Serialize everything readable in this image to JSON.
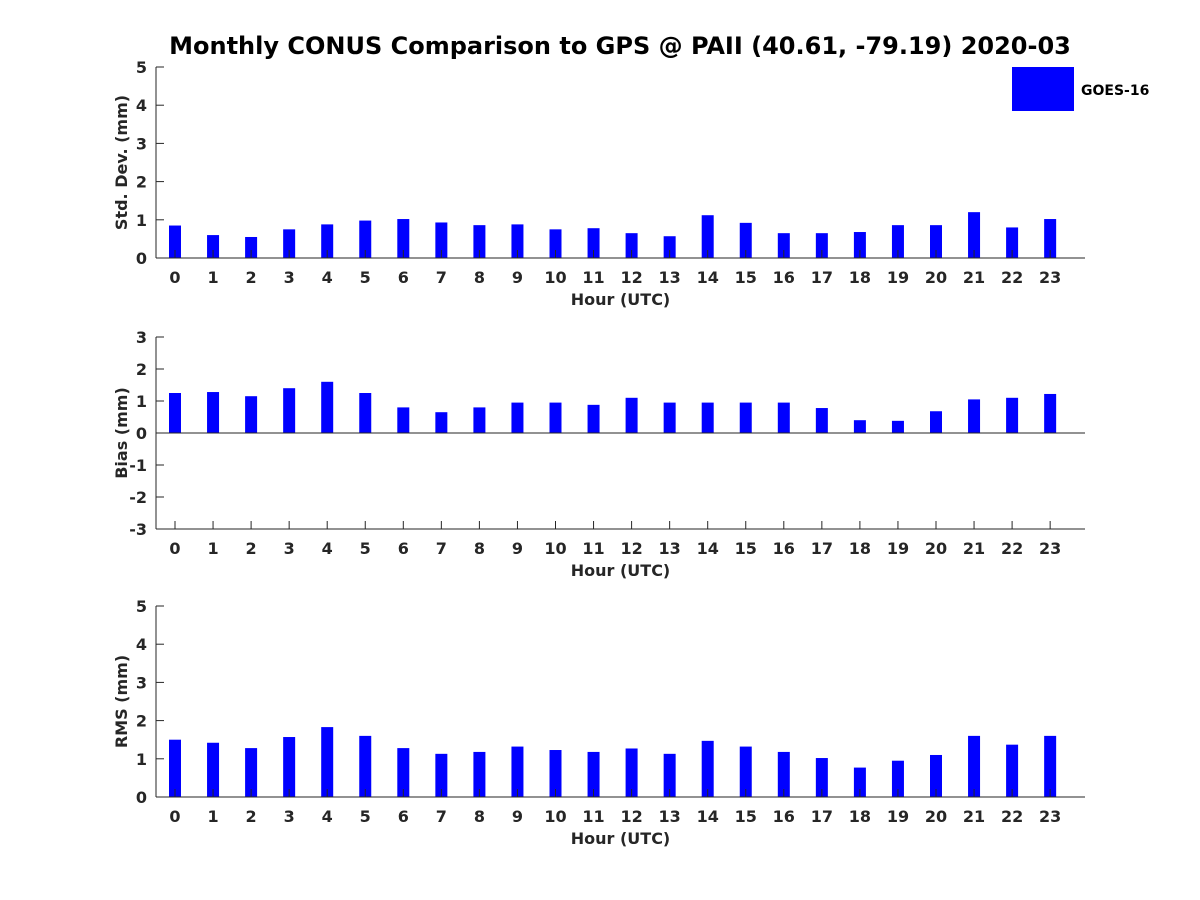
{
  "title": "Monthly CONUS Comparison to GPS @ PAII (40.61, -79.19) 2020-03",
  "legend": {
    "label": "GOES-16",
    "placement": "top-right"
  },
  "colors": {
    "bar": "#0000ff",
    "axis": "#262626"
  },
  "chart_data": [
    {
      "type": "bar",
      "series": [
        {
          "name": "GOES-16",
          "values": [
            0.85,
            0.6,
            0.55,
            0.75,
            0.88,
            0.98,
            1.02,
            0.93,
            0.86,
            0.88,
            0.75,
            0.78,
            0.65,
            0.57,
            1.12,
            0.92,
            0.65,
            0.65,
            0.68,
            0.86,
            0.86,
            1.2,
            0.8,
            1.02
          ]
        }
      ],
      "categories": [
        "0",
        "1",
        "2",
        "3",
        "4",
        "5",
        "6",
        "7",
        "8",
        "9",
        "10",
        "11",
        "12",
        "13",
        "14",
        "15",
        "16",
        "17",
        "18",
        "19",
        "20",
        "21",
        "22",
        "23"
      ],
      "xlabel": "Hour (UTC)",
      "ylabel": "Std. Dev. (mm)",
      "ylim": [
        0,
        5
      ],
      "yticks": [
        0,
        1,
        2,
        3,
        4,
        5
      ],
      "grid": false
    },
    {
      "type": "bar",
      "series": [
        {
          "name": "GOES-16",
          "values": [
            1.25,
            1.28,
            1.15,
            1.4,
            1.6,
            1.25,
            0.8,
            0.65,
            0.8,
            0.95,
            0.95,
            0.88,
            1.1,
            0.95,
            0.95,
            0.95,
            0.95,
            0.78,
            0.4,
            0.38,
            0.68,
            1.05,
            1.1,
            1.22
          ]
        }
      ],
      "categories": [
        "0",
        "1",
        "2",
        "3",
        "4",
        "5",
        "6",
        "7",
        "8",
        "9",
        "10",
        "11",
        "12",
        "13",
        "14",
        "15",
        "16",
        "17",
        "18",
        "19",
        "20",
        "21",
        "22",
        "23"
      ],
      "xlabel": "Hour (UTC)",
      "ylabel": "Bias (mm)",
      "ylim": [
        -3,
        3
      ],
      "yticks": [
        -3,
        -2,
        -1,
        0,
        1,
        2,
        3
      ],
      "grid": false
    },
    {
      "type": "bar",
      "series": [
        {
          "name": "GOES-16",
          "values": [
            1.5,
            1.42,
            1.28,
            1.57,
            1.83,
            1.6,
            1.28,
            1.13,
            1.18,
            1.32,
            1.23,
            1.18,
            1.27,
            1.13,
            1.47,
            1.32,
            1.18,
            1.02,
            0.77,
            0.95,
            1.1,
            1.6,
            1.37,
            1.6
          ]
        }
      ],
      "categories": [
        "0",
        "1",
        "2",
        "3",
        "4",
        "5",
        "6",
        "7",
        "8",
        "9",
        "10",
        "11",
        "12",
        "13",
        "14",
        "15",
        "16",
        "17",
        "18",
        "19",
        "20",
        "21",
        "22",
        "23"
      ],
      "xlabel": "Hour (UTC)",
      "ylabel": "RMS (mm)",
      "ylim": [
        0,
        5
      ],
      "yticks": [
        0,
        1,
        2,
        3,
        4,
        5
      ],
      "grid": false
    }
  ]
}
